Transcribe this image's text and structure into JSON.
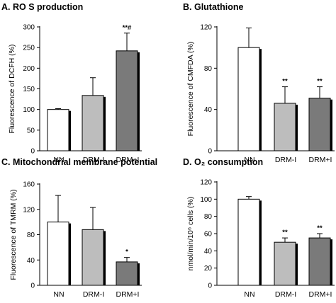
{
  "chart_data": [
    {
      "type": "bar",
      "title": "A. RO S production",
      "ylabel": "Fluorescence of DCFH (%)",
      "categories": [
        "NN",
        "DRM-I",
        "DRM+I"
      ],
      "values": [
        100,
        134,
        242
      ],
      "errors": [
        2,
        43,
        43
      ],
      "significance": [
        "",
        "",
        "**#"
      ],
      "ylim": [
        0,
        300
      ],
      "yticks": [
        "0",
        "50",
        "100",
        "150",
        "200",
        "250",
        "300"
      ],
      "fill_colors": [
        "#ffffff",
        "#bdbdbd",
        "#7a7a7a"
      ]
    },
    {
      "type": "bar",
      "title": "B. Glutathione",
      "ylabel": "Fluorescence of CMFDA (%)",
      "categories": [
        "NN",
        "DRM-I",
        "DRM+I"
      ],
      "values": [
        100,
        46,
        51
      ],
      "errors": [
        19,
        16,
        11
      ],
      "significance": [
        "",
        "**",
        "**"
      ],
      "ylim": [
        0,
        120
      ],
      "yticks": [
        "0",
        "40",
        "80",
        "120"
      ],
      "fill_colors": [
        "#ffffff",
        "#bdbdbd",
        "#7a7a7a"
      ]
    },
    {
      "type": "bar",
      "title": "C. Mitochondrial membrane potential",
      "ylabel": "Fluorescence of TMRM (%)",
      "categories": [
        "NN",
        "DRM-I",
        "DRM+I"
      ],
      "values": [
        100,
        88,
        37
      ],
      "errors": [
        42,
        35,
        7
      ],
      "significance": [
        "",
        "",
        "*"
      ],
      "ylim": [
        0,
        160
      ],
      "yticks": [
        "0",
        "40",
        "80",
        "120",
        "160"
      ],
      "fill_colors": [
        "#ffffff",
        "#bdbdbd",
        "#7a7a7a"
      ]
    },
    {
      "type": "bar",
      "title": "D. O₂ consumption",
      "ylabel": "nmol/min/10⁶ cells (%)",
      "categories": [
        "NN",
        "DRM-I",
        "DRM+I"
      ],
      "values": [
        100,
        50,
        55
      ],
      "errors": [
        3,
        5,
        5
      ],
      "significance": [
        "",
        "**",
        "**"
      ],
      "ylim": [
        0,
        120
      ],
      "yticks": [
        "0",
        "20",
        "40",
        "60",
        "80",
        "100",
        "120"
      ],
      "fill_colors": [
        "#ffffff",
        "#bdbdbd",
        "#7a7a7a"
      ]
    }
  ]
}
